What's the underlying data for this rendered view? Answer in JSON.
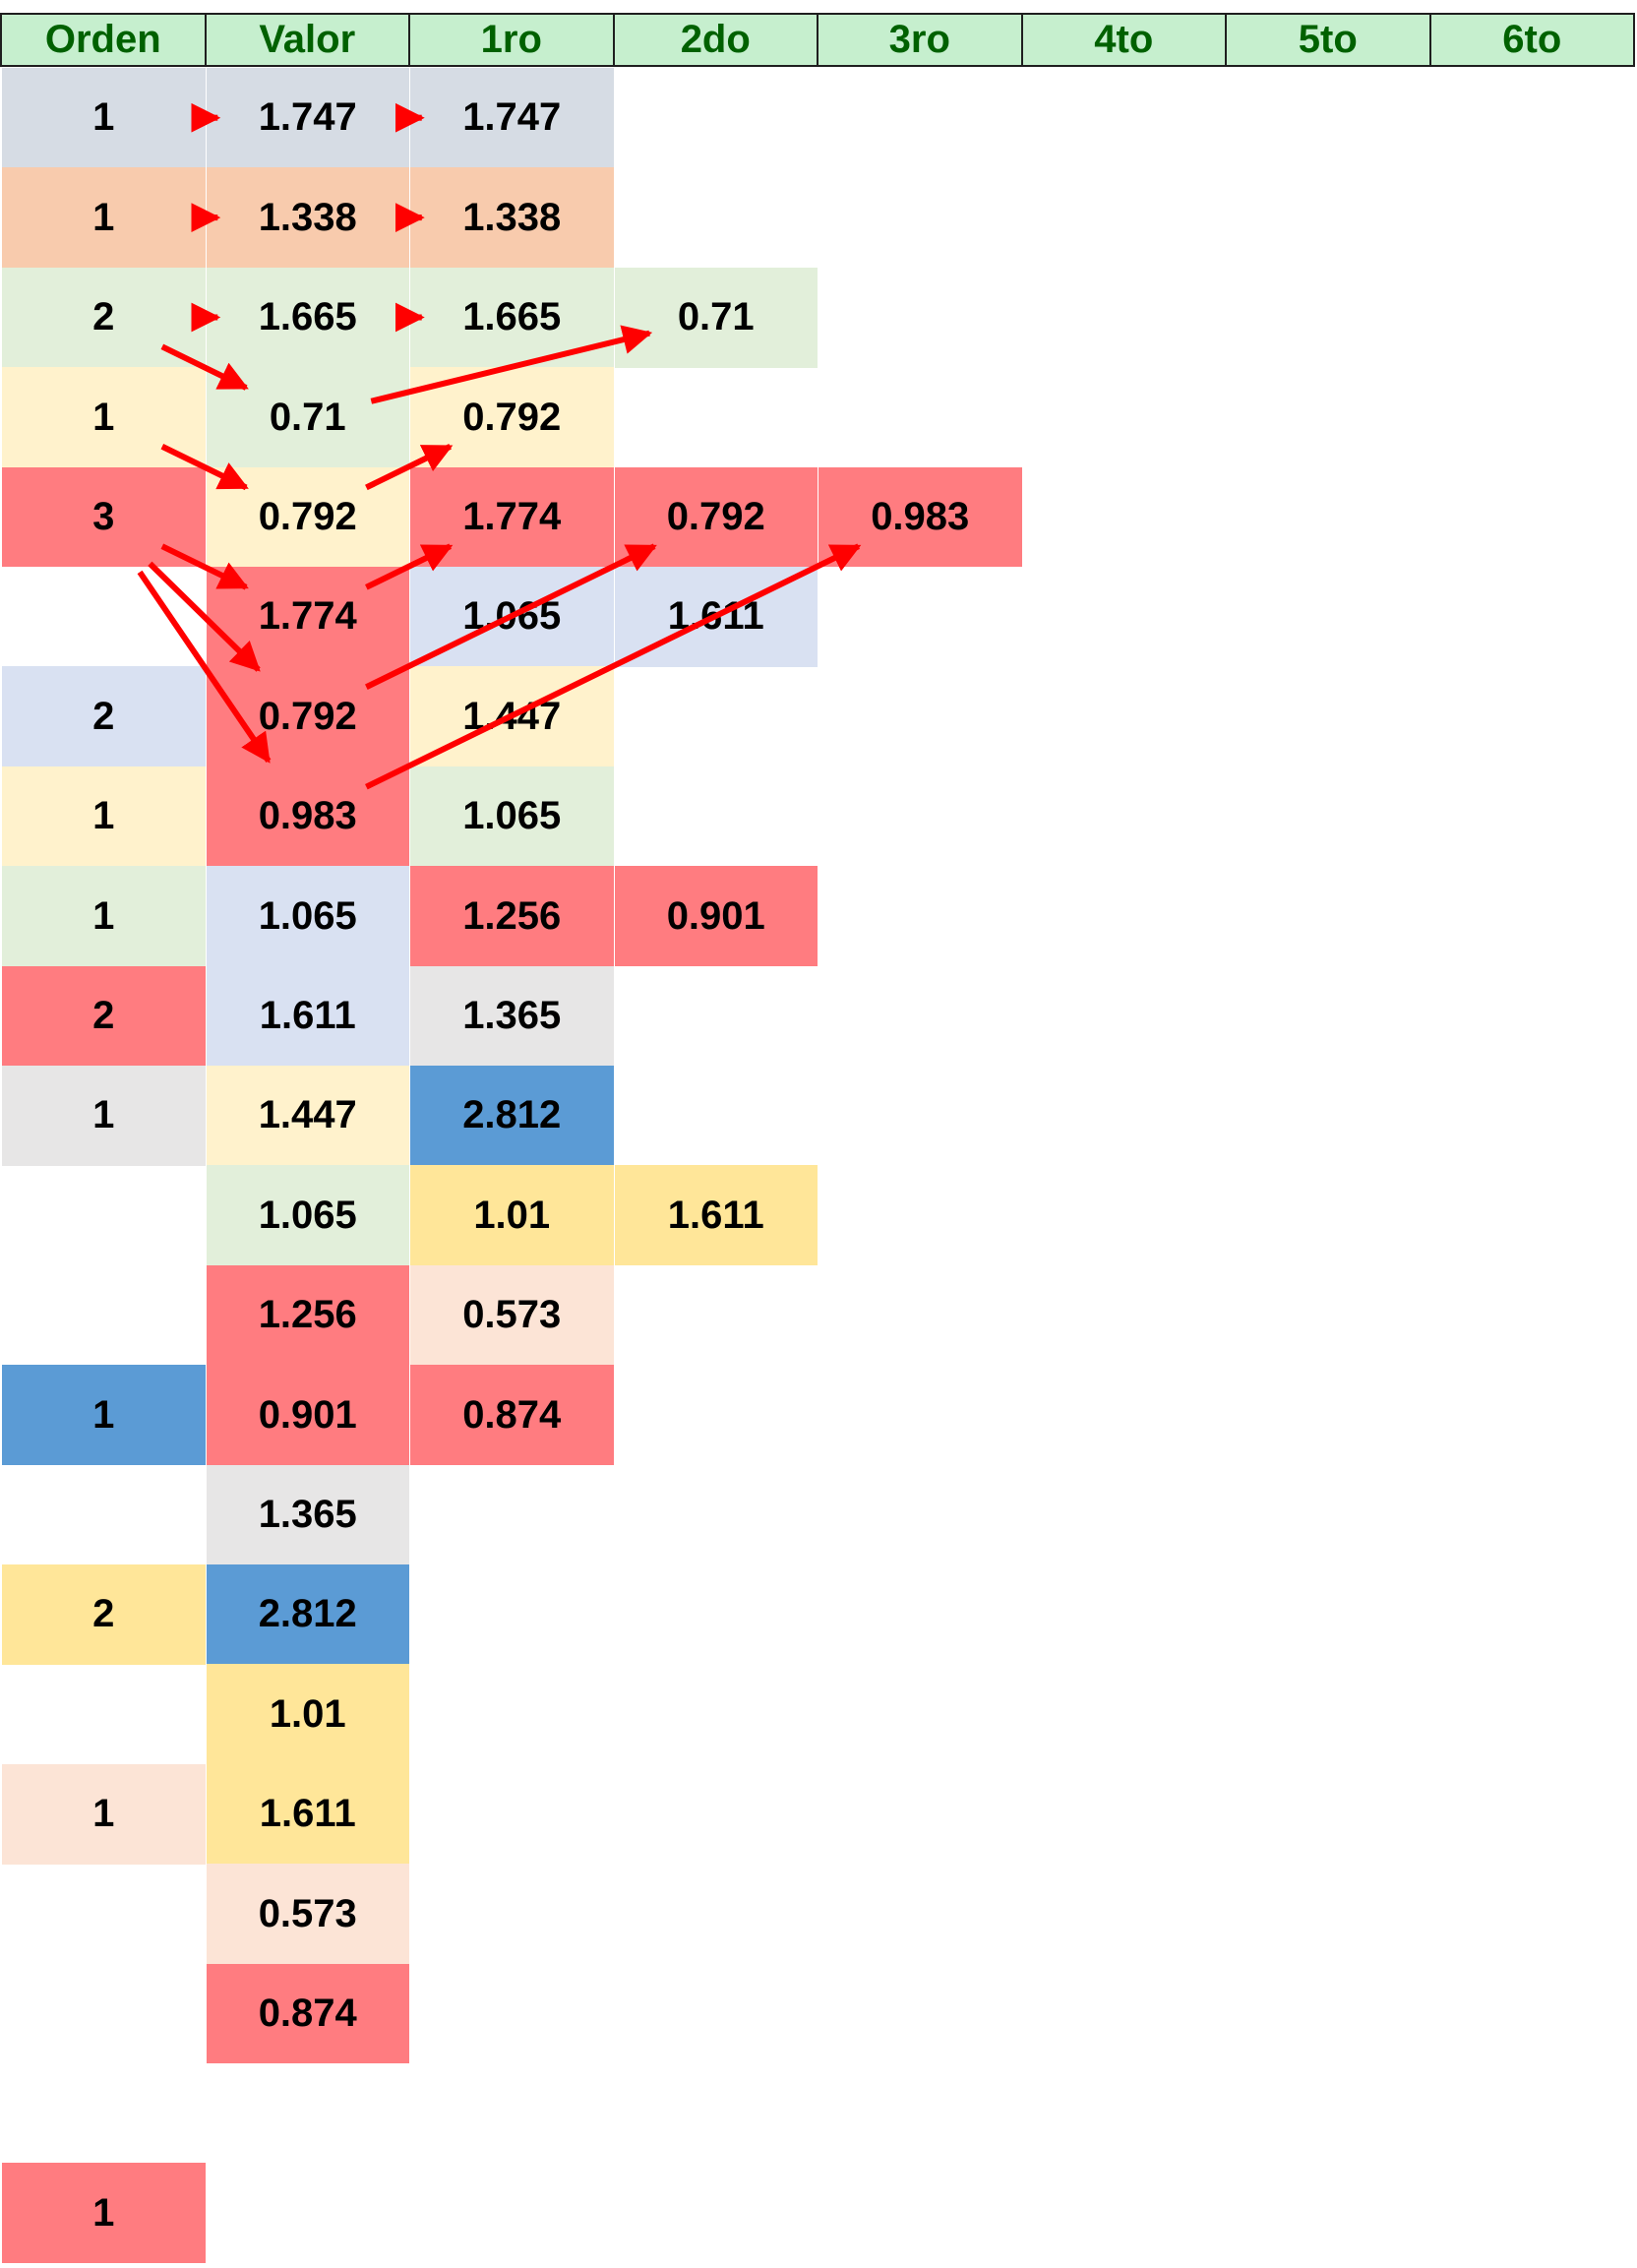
{
  "colors": {
    "header_bg": "#c6efce",
    "header_text": "#006100",
    "arrow": "#ff0000",
    "slate": "#d6dce4",
    "orange": "#f8cbad",
    "green": "#e2efda",
    "cream": "#fff2cc",
    "red": "#ff7c80",
    "lavender": "#d9e1f2",
    "gray": "#e7e6e6",
    "blue": "#5b9bd5",
    "yellow": "#ffe699",
    "peach": "#fce4d6"
  },
  "headers": [
    "Orden",
    "Valor",
    "1ro",
    "2do",
    "3ro",
    "4to",
    "5to",
    "6to"
  ],
  "rows": [
    [
      {
        "t": "1",
        "c": "slate"
      },
      {
        "t": "1.747",
        "c": "slate"
      },
      {
        "t": "1.747",
        "c": "slate"
      }
    ],
    [
      {
        "t": "1",
        "c": "orange"
      },
      {
        "t": "1.338",
        "c": "orange"
      },
      {
        "t": "1.338",
        "c": "orange"
      }
    ],
    [
      {
        "t": "2",
        "c": "green"
      },
      {
        "t": "1.665",
        "c": "green"
      },
      {
        "t": "1.665",
        "c": "green"
      },
      {
        "t": "0.71",
        "c": "green"
      }
    ],
    [
      {
        "t": "1",
        "c": "cream"
      },
      {
        "t": "0.71",
        "c": "green"
      },
      {
        "t": "0.792",
        "c": "cream"
      }
    ],
    [
      {
        "t": "3",
        "c": "red"
      },
      {
        "t": "0.792",
        "c": "cream"
      },
      {
        "t": "1.774",
        "c": "red"
      },
      {
        "t": "0.792",
        "c": "red"
      },
      {
        "t": "0.983",
        "c": "red"
      }
    ],
    [
      {
        "t": "",
        "c": ""
      },
      {
        "t": "1.774",
        "c": "red"
      },
      {
        "t": "1.065",
        "c": "lavender"
      },
      {
        "t": "1.611",
        "c": "lavender"
      }
    ],
    [
      {
        "t": "2",
        "c": "lavender"
      },
      {
        "t": "0.792",
        "c": "red"
      },
      {
        "t": "1.447",
        "c": "cream"
      }
    ],
    [
      {
        "t": "1",
        "c": "cream"
      },
      {
        "t": "0.983",
        "c": "red"
      },
      {
        "t": "1.065",
        "c": "green"
      }
    ],
    [
      {
        "t": "1",
        "c": "green"
      },
      {
        "t": "1.065",
        "c": "lavender"
      },
      {
        "t": "1.256",
        "c": "red"
      },
      {
        "t": "0.901",
        "c": "red"
      }
    ],
    [
      {
        "t": "2",
        "c": "red"
      },
      {
        "t": "1.611",
        "c": "lavender"
      },
      {
        "t": "1.365",
        "c": "gray"
      }
    ],
    [
      {
        "t": "1",
        "c": "gray"
      },
      {
        "t": "1.447",
        "c": "cream"
      },
      {
        "t": "2.812",
        "c": "blue"
      }
    ],
    [
      {
        "t": "",
        "c": ""
      },
      {
        "t": "1.065",
        "c": "green"
      },
      {
        "t": "1.01",
        "c": "yellow"
      },
      {
        "t": "1.611",
        "c": "yellow"
      }
    ],
    [
      {
        "t": "",
        "c": ""
      },
      {
        "t": "1.256",
        "c": "red"
      },
      {
        "t": "0.573",
        "c": "peach"
      }
    ],
    [
      {
        "t": "1",
        "c": "blue"
      },
      {
        "t": "0.901",
        "c": "red"
      },
      {
        "t": "0.874",
        "c": "red"
      }
    ],
    [
      {
        "t": "",
        "c": ""
      },
      {
        "t": "1.365",
        "c": "gray"
      }
    ],
    [
      {
        "t": "2",
        "c": "yellow"
      },
      {
        "t": "2.812",
        "c": "blue"
      }
    ],
    [
      {
        "t": "",
        "c": ""
      },
      {
        "t": "1.01",
        "c": "yellow"
      }
    ],
    [
      {
        "t": "1",
        "c": "peach"
      },
      {
        "t": "1.611",
        "c": "yellow"
      }
    ],
    [
      {
        "t": "",
        "c": ""
      },
      {
        "t": "0.573",
        "c": "peach"
      }
    ],
    [
      {
        "t": "",
        "c": ""
      },
      {
        "t": "0.874",
        "c": "red"
      }
    ],
    [],
    [
      {
        "t": "1",
        "c": "red"
      }
    ]
  ],
  "arrows": [
    {
      "from": [
        0,
        0
      ],
      "to": [
        0,
        1
      ]
    },
    {
      "from": [
        0,
        1
      ],
      "to": [
        0,
        2
      ]
    },
    {
      "from": [
        1,
        0
      ],
      "to": [
        1,
        1
      ]
    },
    {
      "from": [
        1,
        1
      ],
      "to": [
        1,
        2
      ]
    },
    {
      "from": [
        2,
        0
      ],
      "to": [
        2,
        1
      ]
    },
    {
      "from": [
        2,
        1
      ],
      "to": [
        2,
        2
      ]
    },
    {
      "from": [
        2,
        0
      ],
      "to": [
        3,
        1
      ]
    },
    {
      "from": [
        3,
        1
      ],
      "to": [
        2,
        3
      ]
    },
    {
      "from": [
        3,
        0
      ],
      "to": [
        4,
        1
      ]
    },
    {
      "from": [
        4,
        1
      ],
      "to": [
        3,
        2
      ]
    },
    {
      "from": [
        4,
        0
      ],
      "to": [
        5,
        1
      ]
    },
    {
      "from": [
        4,
        0
      ],
      "to": [
        6,
        1
      ]
    },
    {
      "from": [
        4,
        0
      ],
      "to": [
        7,
        1
      ]
    },
    {
      "from": [
        5,
        1
      ],
      "to": [
        4,
        2
      ]
    },
    {
      "from": [
        6,
        1
      ],
      "to": [
        4,
        3
      ]
    },
    {
      "from": [
        7,
        1
      ],
      "to": [
        4,
        4
      ]
    }
  ]
}
